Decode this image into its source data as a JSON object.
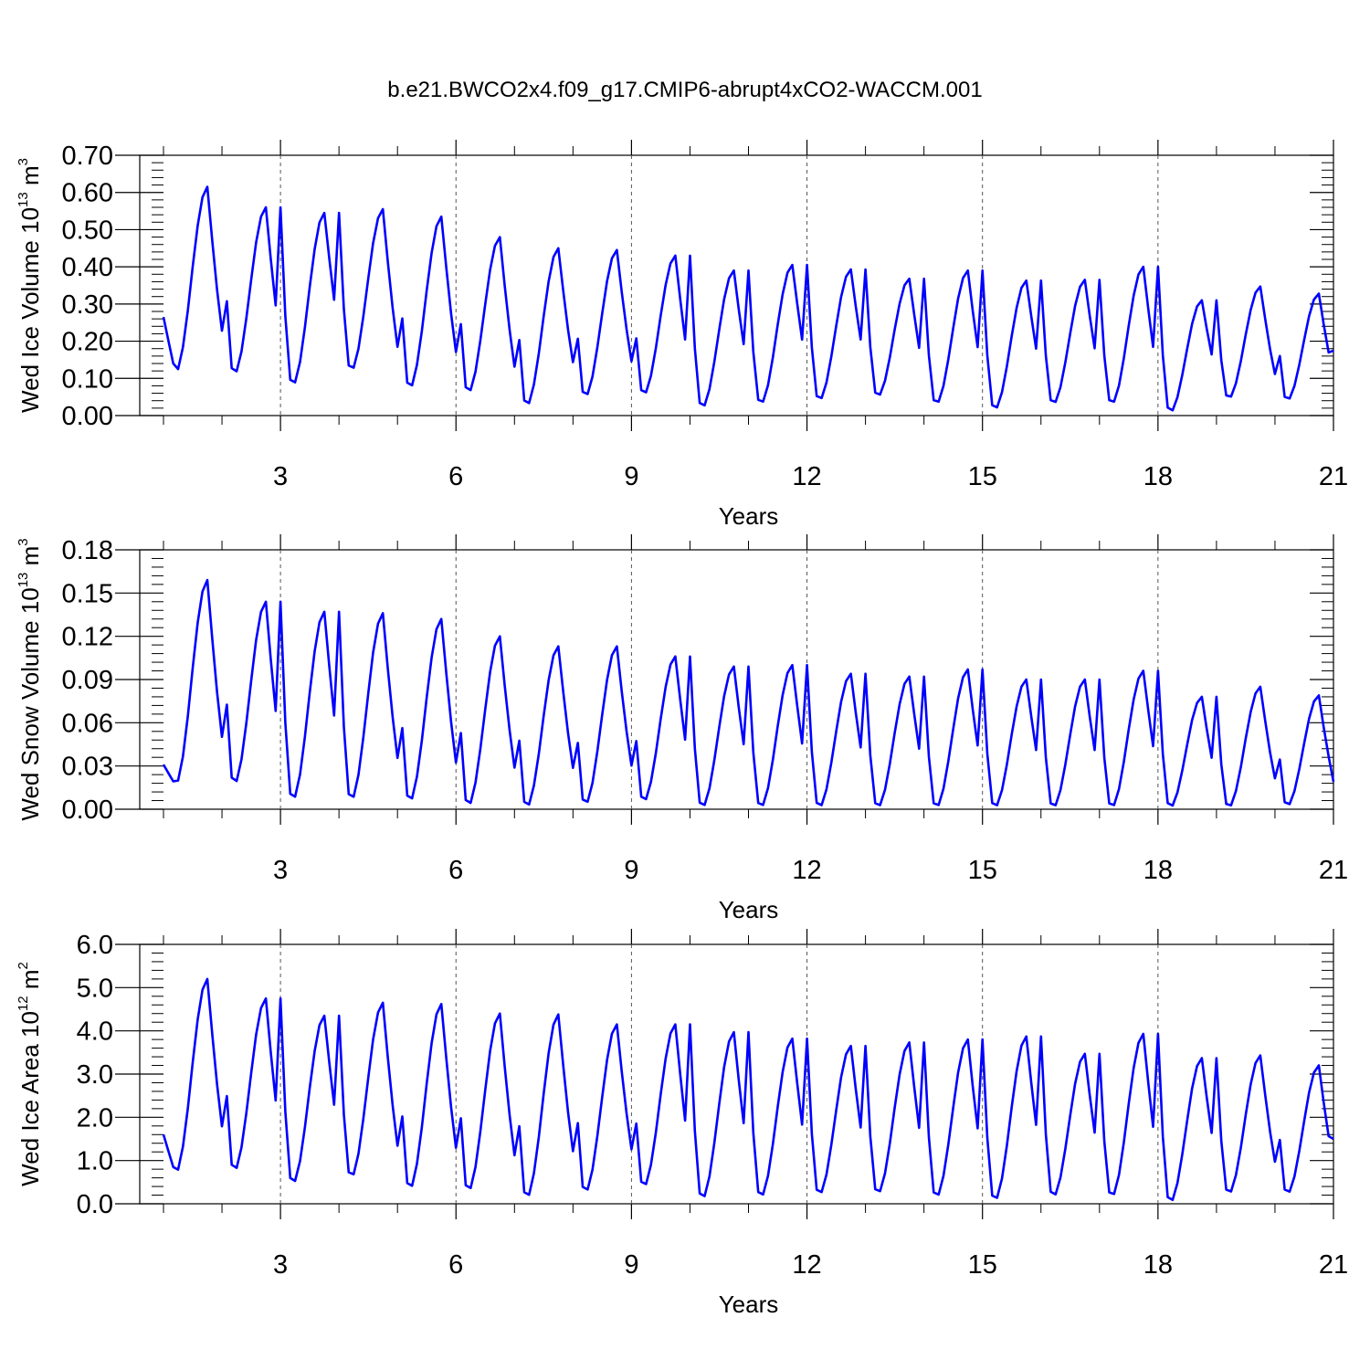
{
  "title": "b.e21.BWCO2x4.f09_g17.CMIP6-abrupt4xCO2-WACCM.001",
  "chart_data": [
    {
      "type": "line",
      "xlabel": "Years",
      "ylabel": {
        "text": "Wed Ice Volume 10",
        "exponent": "13",
        "unit": "m",
        "unit_exponent": "3"
      },
      "xlim": [
        1,
        21
      ],
      "ylim": [
        0,
        0.7
      ],
      "xticks": [
        3,
        6,
        9,
        12,
        15,
        18,
        21
      ],
      "yticks": [
        "0.00",
        "0.10",
        "0.20",
        "0.30",
        "0.40",
        "0.50",
        "0.60",
        "0.70"
      ],
      "grid_x": [
        3,
        6,
        9,
        12,
        15,
        18
      ],
      "color": "#0000ff",
      "annual_cycles": {
        "peaks": [
          0.615,
          0.56,
          0.545,
          0.555,
          0.535,
          0.48,
          0.45,
          0.445,
          0.43,
          0.39,
          0.405,
          0.393,
          0.368,
          0.39,
          0.363,
          0.365,
          0.4,
          0.31,
          0.347,
          0.328
        ],
        "troughs": [
          0.115,
          0.11,
          0.08,
          0.12,
          0.072,
          0.06,
          0.025,
          0.05,
          0.055,
          0.02,
          0.03,
          0.04,
          0.05,
          0.03,
          0.015,
          0.03,
          0.03,
          0.008,
          0.045,
          0.04
        ],
        "start_value": 0.265,
        "end_value": 0.175
      }
    },
    {
      "type": "line",
      "xlabel": "Years",
      "ylabel": {
        "text": "Wed Snow Volume 10",
        "exponent": "13",
        "unit": "m",
        "unit_exponent": "3"
      },
      "xlim": [
        1,
        21
      ],
      "ylim": [
        0,
        0.18
      ],
      "xticks": [
        3,
        6,
        9,
        12,
        15,
        18,
        21
      ],
      "yticks": [
        "0.00",
        "0.03",
        "0.06",
        "0.09",
        "0.12",
        "0.15",
        "0.18"
      ],
      "grid_x": [
        3,
        6,
        9,
        12,
        15,
        18
      ],
      "color": "#0000ff",
      "annual_cycles": {
        "peaks": [
          0.159,
          0.144,
          0.137,
          0.136,
          0.132,
          0.12,
          0.113,
          0.113,
          0.106,
          0.099,
          0.1,
          0.094,
          0.092,
          0.097,
          0.09,
          0.09,
          0.096,
          0.078,
          0.085,
          0.079
        ],
        "troughs": [
          0.017,
          0.017,
          0.006,
          0.006,
          0.005,
          0.002,
          0.001,
          0.003,
          0.005,
          0.001,
          0.001,
          0.001,
          0.001,
          0.001,
          0.001,
          0.001,
          0.001,
          0.001,
          0.001,
          0.002
        ],
        "start_value": 0.031,
        "end_value": 0.019
      }
    },
    {
      "type": "line",
      "xlabel": "Years",
      "ylabel": {
        "text": "Wed Ice Area 10",
        "exponent": "12",
        "unit": "m",
        "unit_exponent": "2"
      },
      "xlim": [
        1,
        21
      ],
      "ylim": [
        0,
        6
      ],
      "xticks": [
        3,
        6,
        9,
        12,
        15,
        18,
        21
      ],
      "yticks": [
        "0.0",
        "1.0",
        "2.0",
        "3.0",
        "4.0",
        "5.0",
        "6.0"
      ],
      "grid_x": [
        3,
        6,
        9,
        12,
        15,
        18
      ],
      "color": "#0000ff",
      "annual_cycles": {
        "peaks": [
          5.2,
          4.75,
          4.35,
          4.65,
          4.62,
          4.4,
          4.38,
          4.15,
          4.15,
          3.97,
          3.82,
          3.65,
          3.73,
          3.8,
          3.87,
          3.47,
          3.93,
          3.37,
          3.43,
          3.2
        ],
        "troughs": [
          0.7,
          0.75,
          0.45,
          0.6,
          0.33,
          0.28,
          0.12,
          0.25,
          0.38,
          0.1,
          0.14,
          0.2,
          0.22,
          0.14,
          0.06,
          0.15,
          0.15,
          0.02,
          0.22,
          0.22
        ],
        "start_value": 1.6,
        "end_value": 1.5
      }
    }
  ]
}
